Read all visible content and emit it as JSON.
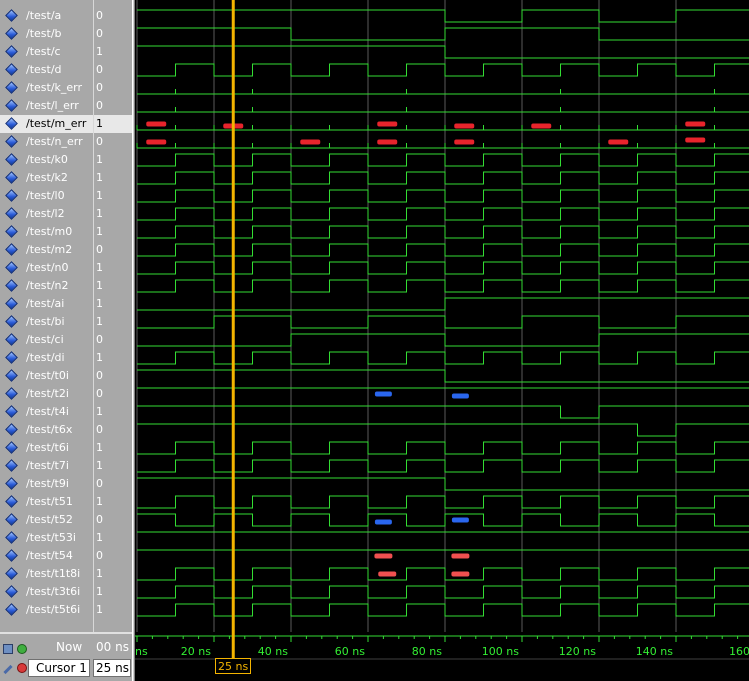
{
  "signals": [
    {
      "name": "/test/a",
      "value": "0",
      "wave": "b",
      "edges": [
        0,
        80,
        100,
        120,
        140,
        160
      ],
      "init": 1
    },
    {
      "name": "/test/b",
      "value": "0",
      "wave": "b",
      "edges": [
        0,
        40,
        80,
        120,
        160
      ],
      "init": 1
    },
    {
      "name": "/test/c",
      "value": "1",
      "wave": "b",
      "edges": [
        0,
        80,
        160
      ],
      "init": 1
    },
    {
      "name": "/test/d",
      "value": "0",
      "wave": "b",
      "edges": [
        0,
        10,
        20,
        30,
        40,
        50,
        60,
        70,
        80,
        90,
        100,
        110,
        120,
        130,
        140,
        150,
        160
      ],
      "init": 0
    },
    {
      "name": "/test/k_err",
      "value": "0",
      "wave": "g",
      "glitches": [
        10,
        30,
        70,
        110,
        150
      ]
    },
    {
      "name": "/test/l_err",
      "value": "0",
      "wave": "g",
      "glitches": [
        10,
        30,
        70,
        110,
        150
      ]
    },
    {
      "name": "/test/m_err",
      "value": "1",
      "wave": "e",
      "marks": [
        {
          "t": 5,
          "y": "mid"
        },
        {
          "t": 25,
          "y": "low"
        },
        {
          "t": 65,
          "y": "mid"
        },
        {
          "t": 85,
          "y": "low"
        },
        {
          "t": 105,
          "y": "low"
        },
        {
          "t": 145,
          "y": "mid"
        }
      ],
      "selected": true
    },
    {
      "name": "/test/n_err",
      "value": "0",
      "wave": "e",
      "marks": [
        {
          "t": 5,
          "y": "mid"
        },
        {
          "t": 45,
          "y": "mid"
        },
        {
          "t": 65,
          "y": "mid"
        },
        {
          "t": 85,
          "y": "mid"
        },
        {
          "t": 125,
          "y": "mid"
        },
        {
          "t": 145,
          "y": "top"
        }
      ]
    },
    {
      "name": "/test/k0",
      "value": "1",
      "wave": "b",
      "edges": [
        0,
        10,
        20,
        30,
        40,
        50,
        60,
        70,
        80,
        90,
        100,
        110,
        120,
        130,
        140,
        150,
        160
      ],
      "init": 0
    },
    {
      "name": "/test/k2",
      "value": "1",
      "wave": "b",
      "edges": [
        0,
        10,
        20,
        30,
        40,
        50,
        60,
        70,
        80,
        90,
        100,
        110,
        120,
        130,
        140,
        150,
        160
      ],
      "init": 0
    },
    {
      "name": "/test/l0",
      "value": "1",
      "wave": "b",
      "edges": [
        0,
        10,
        20,
        30,
        40,
        50,
        60,
        70,
        80,
        90,
        100,
        110,
        120,
        130,
        140,
        150,
        160
      ],
      "init": 0
    },
    {
      "name": "/test/l2",
      "value": "1",
      "wave": "b",
      "edges": [
        0,
        10,
        20,
        30,
        40,
        50,
        60,
        70,
        80,
        90,
        100,
        110,
        120,
        130,
        140,
        150,
        160
      ],
      "init": 0
    },
    {
      "name": "/test/m0",
      "value": "1",
      "wave": "b",
      "edges": [
        0,
        10,
        20,
        30,
        40,
        50,
        60,
        70,
        80,
        90,
        100,
        110,
        120,
        130,
        140,
        150,
        160
      ],
      "init": 0
    },
    {
      "name": "/test/m2",
      "value": "0",
      "wave": "b",
      "edges": [
        0,
        10,
        20,
        30,
        40,
        50,
        60,
        70,
        80,
        90,
        100,
        110,
        120,
        130,
        140,
        150,
        160
      ],
      "init": 0
    },
    {
      "name": "/test/n0",
      "value": "1",
      "wave": "b",
      "edges": [
        0,
        10,
        20,
        30,
        40,
        50,
        60,
        70,
        80,
        90,
        100,
        110,
        120,
        130,
        140,
        150,
        160
      ],
      "init": 0
    },
    {
      "name": "/test/n2",
      "value": "1",
      "wave": "b",
      "edges": [
        0,
        10,
        20,
        30,
        40,
        50,
        60,
        70,
        80,
        90,
        100,
        110,
        120,
        130,
        140,
        150,
        160
      ],
      "init": 0
    },
    {
      "name": "/test/ai",
      "value": "1",
      "wave": "b",
      "edges": [
        0,
        80,
        160
      ],
      "init": 0
    },
    {
      "name": "/test/bi",
      "value": "1",
      "wave": "b",
      "edges": [
        0,
        20,
        40,
        60,
        80,
        100,
        120,
        140,
        160
      ],
      "init": 0
    },
    {
      "name": "/test/ci",
      "value": "0",
      "wave": "b",
      "edges": [
        0,
        40,
        80,
        120,
        160
      ],
      "init": 0
    },
    {
      "name": "/test/di",
      "value": "1",
      "wave": "b",
      "edges": [
        0,
        10,
        20,
        30,
        40,
        50,
        60,
        70,
        80,
        90,
        100,
        110,
        120,
        130,
        140,
        150,
        160
      ],
      "init": 0
    },
    {
      "name": "/test/t0i",
      "value": "0",
      "wave": "b",
      "edges": [
        0,
        80,
        160
      ],
      "init": 1
    },
    {
      "name": "/test/t2i",
      "value": "0",
      "wave": "x",
      "edges": [
        0,
        160
      ],
      "init": 1,
      "marks": [
        {
          "t": 64,
          "y": "mid"
        },
        {
          "t": 84,
          "y": "low"
        }
      ]
    },
    {
      "name": "/test/t4i",
      "value": "1",
      "wave": "b",
      "edges": [
        0,
        110,
        120,
        160
      ],
      "init": 1
    },
    {
      "name": "/test/t6x",
      "value": "0",
      "wave": "b",
      "edges": [
        0,
        130,
        140,
        160
      ],
      "init": 1
    },
    {
      "name": "/test/t6i",
      "value": "1",
      "wave": "b",
      "edges": [
        0,
        10,
        20,
        30,
        40,
        50,
        60,
        70,
        80,
        90,
        100,
        110,
        120,
        130,
        140,
        150,
        160
      ],
      "init": 0
    },
    {
      "name": "/test/t7i",
      "value": "1",
      "wave": "b",
      "edges": [
        0,
        10,
        20,
        30,
        40,
        50,
        60,
        70,
        80,
        90,
        100,
        110,
        120,
        130,
        140,
        150,
        160
      ],
      "init": 0
    },
    {
      "name": "/test/t9i",
      "value": "0",
      "wave": "b",
      "edges": [
        0,
        80,
        160
      ],
      "init": 1
    },
    {
      "name": "/test/t51",
      "value": "1",
      "wave": "b",
      "edges": [
        0,
        10,
        20,
        30,
        40,
        50,
        60,
        70,
        80,
        90,
        100,
        110,
        120,
        130,
        140,
        150,
        160
      ],
      "init": 0
    },
    {
      "name": "/test/t52",
      "value": "0",
      "wave": "x",
      "edges": [
        0,
        10,
        20,
        30,
        40,
        50,
        60,
        70,
        80,
        90,
        100,
        110,
        120,
        130,
        140,
        150,
        160
      ],
      "init": 1,
      "marks": [
        {
          "t": 64,
          "y": "low"
        },
        {
          "t": 84,
          "y": "mid"
        }
      ]
    },
    {
      "name": "/test/t53i",
      "value": "1",
      "wave": "b",
      "edges": [
        0,
        160
      ],
      "init": 1
    },
    {
      "name": "/test/t54",
      "value": "0",
      "wave": "p",
      "edges": [
        0,
        160
      ],
      "init": 1,
      "marks": [
        {
          "t": 64,
          "y": "mid"
        },
        {
          "t": 84,
          "y": "mid"
        }
      ]
    },
    {
      "name": "/test/t1t8i",
      "value": "1",
      "wave": "p",
      "edges": [
        0,
        10,
        20,
        30,
        40,
        50,
        60,
        70,
        80,
        90,
        100,
        110,
        120,
        130,
        140,
        150,
        160
      ],
      "init": 0,
      "marks": [
        {
          "t": 65,
          "y": "mid"
        },
        {
          "t": 84,
          "y": "mid"
        }
      ]
    },
    {
      "name": "/test/t3t6i",
      "value": "1",
      "wave": "b",
      "edges": [
        0,
        10,
        20,
        30,
        40,
        50,
        60,
        70,
        80,
        90,
        100,
        110,
        120,
        130,
        140,
        150,
        160
      ],
      "init": 0
    },
    {
      "name": "/test/t5t6i",
      "value": "1",
      "wave": "b",
      "edges": [
        0,
        10,
        20,
        30,
        40,
        50,
        60,
        70,
        80,
        90,
        100,
        110,
        120,
        130,
        140,
        150,
        160
      ],
      "init": 0
    }
  ],
  "time_axis": {
    "unit": "ns",
    "ticks": [
      {
        "t": 0,
        "label": "ns"
      },
      {
        "t": 20,
        "label": "20 ns"
      },
      {
        "t": 40,
        "label": "40 ns"
      },
      {
        "t": 60,
        "label": "60 ns"
      },
      {
        "t": 80,
        "label": "80 ns"
      },
      {
        "t": 100,
        "label": "100 ns"
      },
      {
        "t": 120,
        "label": "120 ns"
      },
      {
        "t": 140,
        "label": "140 ns"
      },
      {
        "t": 160,
        "label": "160"
      }
    ]
  },
  "status": {
    "now_label": "Now",
    "now_value": "00 ns",
    "cursor_label": "Cursor 1",
    "cursor_value": "25 ns",
    "cursor_time": 25,
    "cursor_flag": "25 ns"
  },
  "colors": {
    "wave": "#33dd33",
    "grid": "#5a5a5a",
    "cursor": "#f4b400",
    "error_mark": "#e8242c",
    "blue_mark": "#2a66ee",
    "pink_mark": "#f05050"
  }
}
